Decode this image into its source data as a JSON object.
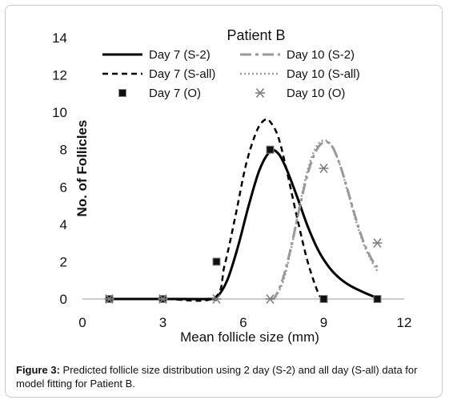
{
  "caption": {
    "label": "Figure 3:",
    "text": " Predicted follicle size distribution using 2 day (S-2) and all day (S-all) data for model fitting for Patient B."
  },
  "chart_data": {
    "type": "line",
    "title": "Patient B",
    "xlabel": "Mean follicle size (mm)",
    "ylabel": "No. of Follicles",
    "xlim": [
      0,
      12
    ],
    "ylim": [
      0,
      14
    ],
    "xticks": [
      0,
      3,
      6,
      9,
      12
    ],
    "yticks": [
      0,
      2,
      4,
      6,
      8,
      10,
      12,
      14
    ],
    "grid": false,
    "legend_position": "top",
    "series": [
      {
        "name": "Day 7 (S-2)",
        "style": "solid",
        "color": "#000000",
        "x": [
          1,
          3,
          4.8,
          5,
          5.4,
          5.8,
          6.2,
          6.6,
          7.0,
          7.3,
          7.6,
          8.0,
          8.4,
          8.8,
          9.2,
          9.6,
          10.0,
          10.5,
          11.0
        ],
        "y": [
          0,
          0,
          0,
          0.05,
          1.0,
          2.8,
          5.0,
          6.9,
          7.9,
          7.8,
          7.0,
          5.5,
          3.9,
          2.6,
          1.7,
          1.1,
          0.7,
          0.35,
          0.05
        ]
      },
      {
        "name": "Day 10 (S-2)",
        "style": "dashdot",
        "color": "#999999",
        "x": [
          7,
          7.2,
          7.5,
          7.8,
          8.1,
          8.4,
          8.7,
          9.0,
          9.3,
          9.6,
          9.9,
          10.2,
          10.5,
          10.8,
          11.0
        ],
        "y": [
          0,
          0.15,
          1.2,
          2.9,
          4.9,
          6.7,
          7.9,
          8.4,
          8.2,
          7.2,
          5.8,
          4.3,
          3.0,
          2.1,
          1.7
        ]
      },
      {
        "name": "Day 7 (S-all)",
        "style": "dashed",
        "color": "#000000",
        "x": [
          1,
          3,
          4.9,
          5.3,
          5.7,
          6.1,
          6.5,
          6.8,
          7.0,
          7.3,
          7.6,
          8.0,
          8.4,
          8.8,
          9.0
        ],
        "y": [
          0,
          0,
          0.05,
          1.8,
          4.4,
          7.2,
          9.0,
          9.6,
          9.5,
          8.7,
          7.0,
          4.4,
          2.0,
          0.3,
          0.0
        ]
      },
      {
        "name": "Day 10 (S-all)",
        "style": "dotted",
        "color": "#999999",
        "x": [
          7.2,
          7.5,
          7.8,
          8.1,
          8.4,
          8.7,
          9.0,
          9.3,
          9.6,
          9.9,
          10.2,
          10.5,
          10.8,
          11.0
        ],
        "y": [
          0.1,
          1.0,
          2.8,
          5.0,
          6.9,
          8.1,
          8.5,
          8.2,
          7.2,
          5.7,
          4.2,
          2.9,
          2.0,
          1.5
        ]
      },
      {
        "name": "Day 7 (O)",
        "style": "marker-square",
        "color": "#000000",
        "x": [
          1,
          3,
          5,
          7,
          9,
          11
        ],
        "y": [
          0,
          0,
          2,
          8,
          0,
          0
        ]
      },
      {
        "name": "Day 10 (O)",
        "style": "marker-asterisk",
        "color": "#808080",
        "x": [
          1,
          3,
          5,
          7,
          9,
          11
        ],
        "y": [
          0,
          0,
          0,
          0,
          7,
          3
        ]
      }
    ]
  }
}
